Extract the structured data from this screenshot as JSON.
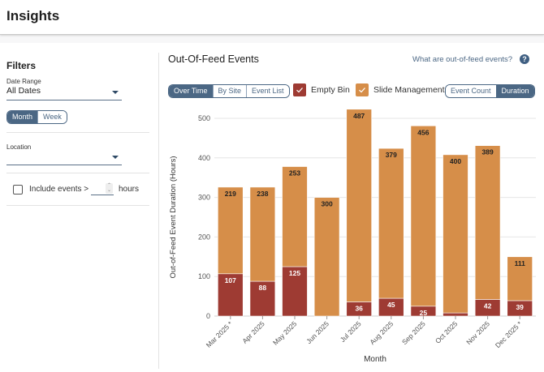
{
  "header": {
    "title": "Insights"
  },
  "filters": {
    "title": "Filters",
    "date_range": {
      "label": "Date Range",
      "value": "All Dates"
    },
    "granularity": {
      "options": [
        "Month",
        "Week"
      ],
      "active": "Month"
    },
    "location": {
      "label": "Location",
      "value": ""
    },
    "include_events": {
      "checked": false,
      "label": "Include events >",
      "value": "",
      "unit": "hours"
    }
  },
  "main": {
    "title": "Out-Of-Feed Events",
    "help_link": "What are out-of-feed events?",
    "help_icon": "?",
    "view_tabs": {
      "options": [
        "Over Time",
        "By Site",
        "Event List"
      ],
      "active": "Over Time"
    },
    "legend": [
      {
        "name": "Empty Bin",
        "color": "#9e3b33",
        "checked": true
      },
      {
        "name": "Slide Management",
        "color": "#d68e49",
        "checked": true
      }
    ],
    "metric_tabs": {
      "options": [
        "Event Count",
        "Duration"
      ],
      "active": "Duration"
    }
  },
  "chart_data": {
    "type": "bar",
    "stacked": true,
    "title": "Out-Of-Feed Events",
    "xlabel": "Month",
    "ylabel": "Out-of-Feed Event Duration (Hours)",
    "ylim": [
      0,
      500
    ],
    "yticks": [
      0,
      100,
      200,
      300,
      400,
      500
    ],
    "grid": true,
    "categories": [
      "Mar 2025 *",
      "Apr 2025",
      "May 2025",
      "Jun 2025",
      "Jul 2025",
      "Aug 2025",
      "Sep 2025",
      "Oct 2025",
      "Nov 2025",
      "Dec 2025 *"
    ],
    "series": [
      {
        "name": "Empty Bin",
        "color": "#9e3b33",
        "values": [
          107,
          88,
          125,
          0,
          36,
          45,
          25,
          8,
          42,
          39
        ],
        "labels": [
          "107",
          "88",
          "125",
          "",
          "36",
          "45",
          "25",
          "",
          "42",
          "39"
        ]
      },
      {
        "name": "Slide Management",
        "color": "#d68e49",
        "values": [
          219,
          238,
          253,
          300,
          487,
          379,
          456,
          400,
          389,
          111
        ],
        "labels": [
          "219",
          "238",
          "253",
          "300",
          "487",
          "379",
          "456",
          "400",
          "389",
          "111"
        ]
      }
    ]
  }
}
